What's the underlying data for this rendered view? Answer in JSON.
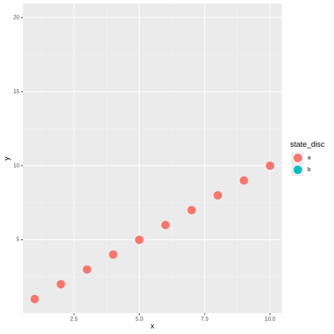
{
  "chart_data": {
    "type": "scatter",
    "x": [
      1,
      2,
      3,
      4,
      5,
      6,
      7,
      8,
      9,
      10
    ],
    "series": [
      {
        "name": "a",
        "color": "#F8766D",
        "values": [
          1,
          2,
          3,
          4,
          5,
          6,
          7,
          8,
          9,
          10
        ]
      },
      {
        "name": "b",
        "color": "#00BFC4",
        "values": [
          null,
          null,
          null,
          null,
          null,
          null,
          null,
          null,
          null,
          null
        ]
      }
    ],
    "x_label": "x",
    "y_label": "y",
    "legend_title": "state_disc",
    "xlim": [
      0.55,
      10.45
    ],
    "ylim": [
      0.05,
      20.95
    ],
    "xticks": [
      2.5,
      {
        "value": 5,
        "label": "5.0"
      },
      7.5,
      {
        "value": 10,
        "label": "10.0"
      }
    ],
    "yticks": [
      5,
      10,
      15,
      20
    ],
    "grid": true,
    "legend_position": "right"
  }
}
